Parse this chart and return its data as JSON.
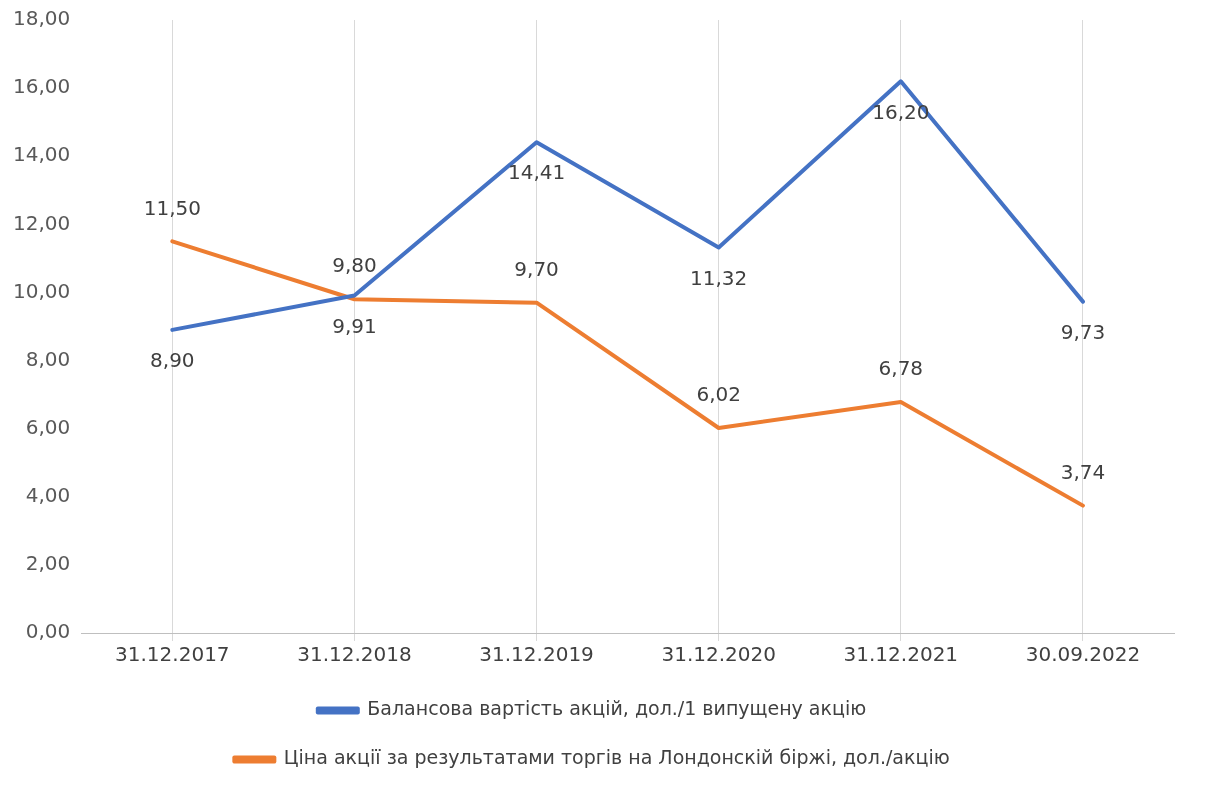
{
  "chart_data": {
    "type": "line",
    "categories": [
      "31.12.2017",
      "31.12.2018",
      "31.12.2019",
      "31.12.2020",
      "31.12.2021",
      "30.09.2022"
    ],
    "series": [
      {
        "name": "Балансова вартість акцій, дол./1 випущену акцію",
        "color": "#4472c4",
        "values": [
          8.9,
          9.91,
          14.41,
          11.32,
          16.2,
          9.73
        ],
        "value_labels": [
          "8,90",
          "9,91",
          "14,41",
          "11,32",
          "16,20",
          "9,73"
        ]
      },
      {
        "name": "Ціна акції за результатами торгів на Лондонскій біржі, дол./акцію",
        "color": "#ed7d31",
        "values": [
          11.5,
          9.8,
          9.7,
          6.02,
          6.78,
          3.74
        ],
        "value_labels": [
          "11,50",
          "9,80",
          "9,70",
          "6,02",
          "6,78",
          "3,74"
        ]
      }
    ],
    "ylim": [
      0,
      18
    ],
    "yticks": [
      {
        "value": 0,
        "label": "0,00"
      },
      {
        "value": 2,
        "label": "2,00"
      },
      {
        "value": 4,
        "label": "4,00"
      },
      {
        "value": 6,
        "label": "6,00"
      },
      {
        "value": 8,
        "label": "8,00"
      },
      {
        "value": 10,
        "label": "10,00"
      },
      {
        "value": 12,
        "label": "12,00"
      },
      {
        "value": 14,
        "label": "14,00"
      },
      {
        "value": 16,
        "label": "16,00"
      },
      {
        "value": 18,
        "label": "18,00"
      }
    ],
    "grid": "x",
    "legend": "bottom",
    "marker": "none",
    "line_style": "solid"
  }
}
